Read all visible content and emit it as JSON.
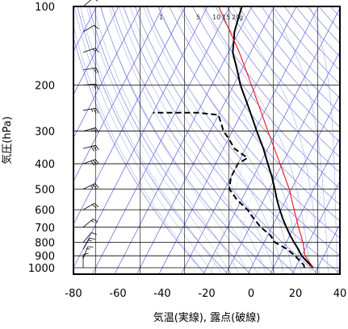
{
  "chart_data": {
    "type": "line",
    "chart_kind": "skew-T log-p thermodynamic diagram",
    "xlabel": "気温(実線), 露点(破線)",
    "ylabel": "気圧(hPa)",
    "xlim": [
      -80,
      40
    ],
    "ylim_hpa": [
      1050,
      100
    ],
    "y_scale": "log",
    "x_ticks": [
      -80,
      -60,
      -40,
      -20,
      0,
      20,
      40
    ],
    "y_ticks": [
      100,
      200,
      300,
      400,
      500,
      600,
      700,
      800,
      900,
      1000
    ],
    "grid": true,
    "mixing_ratio_labels": [
      "1",
      "5",
      "10",
      "15",
      "20",
      "g"
    ],
    "colors": {
      "temperature": "#000000",
      "dewpoint": "#000000",
      "parcel": "#e8141c",
      "isotherms": "#3c46d2",
      "dry_adiabats": "#5a64dc",
      "moist_adiabats": "#8c96eb",
      "mixing_ratio": "#b4bef0",
      "grid": "#000000",
      "wind_barbs": "#000000"
    },
    "series": [
      {
        "name": "気温",
        "style": "solid",
        "points": [
          [
            1000,
            28.0
          ],
          [
            975,
            26.0
          ],
          [
            950,
            24.0
          ],
          [
            925,
            22.0
          ],
          [
            900,
            20.0
          ],
          [
            875,
            18.5
          ],
          [
            850,
            17.0
          ],
          [
            800,
            13.5
          ],
          [
            750,
            10.0
          ],
          [
            700,
            6.5
          ],
          [
            650,
            3.0
          ],
          [
            600,
            -0.5
          ],
          [
            550,
            -4.0
          ],
          [
            500,
            -7.5
          ],
          [
            450,
            -11.5
          ],
          [
            400,
            -16.5
          ],
          [
            350,
            -22.0
          ],
          [
            300,
            -29.0
          ],
          [
            250,
            -37.0
          ],
          [
            200,
            -47.0
          ],
          [
            175,
            -52.0
          ],
          [
            150,
            -58.0
          ],
          [
            125,
            -62.0
          ],
          [
            110,
            -63.5
          ],
          [
            100,
            -64.5
          ]
        ]
      },
      {
        "name": "露点",
        "style": "dashed",
        "points": [
          [
            1000,
            24.0
          ],
          [
            975,
            23.0
          ],
          [
            950,
            21.0
          ],
          [
            925,
            19.0
          ],
          [
            900,
            17.0
          ],
          [
            850,
            12.0
          ],
          [
            800,
            5.0
          ],
          [
            750,
            1.0
          ],
          [
            700,
            -5.0
          ],
          [
            650,
            -10.0
          ],
          [
            600,
            -15.0
          ],
          [
            550,
            -22.0
          ],
          [
            500,
            -28.0
          ],
          [
            450,
            -30.0
          ],
          [
            400,
            -30.0
          ],
          [
            380,
            -27.0
          ],
          [
            350,
            -35.0
          ],
          [
            320,
            -40.0
          ],
          [
            300,
            -44.0
          ],
          [
            260,
            -50.0
          ],
          [
            255,
            -60.0
          ],
          [
            255,
            -80.0
          ]
        ]
      },
      {
        "name": "parcel",
        "style": "solid",
        "points": [
          [
            1000,
            28.0
          ],
          [
            900,
            21.5
          ],
          [
            800,
            17.5
          ],
          [
            700,
            12.0
          ],
          [
            600,
            6.0
          ],
          [
            500,
            -1.0
          ],
          [
            400,
            -11.0
          ],
          [
            300,
            -24.0
          ],
          [
            200,
            -42.0
          ],
          [
            150,
            -55.0
          ],
          [
            100,
            -75.0
          ]
        ]
      }
    ],
    "wind_barbs": [
      {
        "p": 1000,
        "speed_kt": 10,
        "dir_deg": 180
      },
      {
        "p": 925,
        "speed_kt": 15,
        "dir_deg": 200
      },
      {
        "p": 850,
        "speed_kt": 15,
        "dir_deg": 210
      },
      {
        "p": 800,
        "speed_kt": 10,
        "dir_deg": 220
      },
      {
        "p": 700,
        "speed_kt": 15,
        "dir_deg": 230
      },
      {
        "p": 600,
        "speed_kt": 20,
        "dir_deg": 240
      },
      {
        "p": 500,
        "speed_kt": 25,
        "dir_deg": 245
      },
      {
        "p": 400,
        "speed_kt": 30,
        "dir_deg": 250
      },
      {
        "p": 350,
        "speed_kt": 30,
        "dir_deg": 255
      },
      {
        "p": 300,
        "speed_kt": 25,
        "dir_deg": 255
      },
      {
        "p": 250,
        "speed_kt": 25,
        "dir_deg": 260
      },
      {
        "p": 200,
        "speed_kt": 20,
        "dir_deg": 265
      },
      {
        "p": 175,
        "speed_kt": 20,
        "dir_deg": 260
      },
      {
        "p": 150,
        "speed_kt": 15,
        "dir_deg": 250
      },
      {
        "p": 125,
        "speed_kt": 10,
        "dir_deg": 240
      },
      {
        "p": 100,
        "speed_kt": 10,
        "dir_deg": 230
      }
    ]
  }
}
